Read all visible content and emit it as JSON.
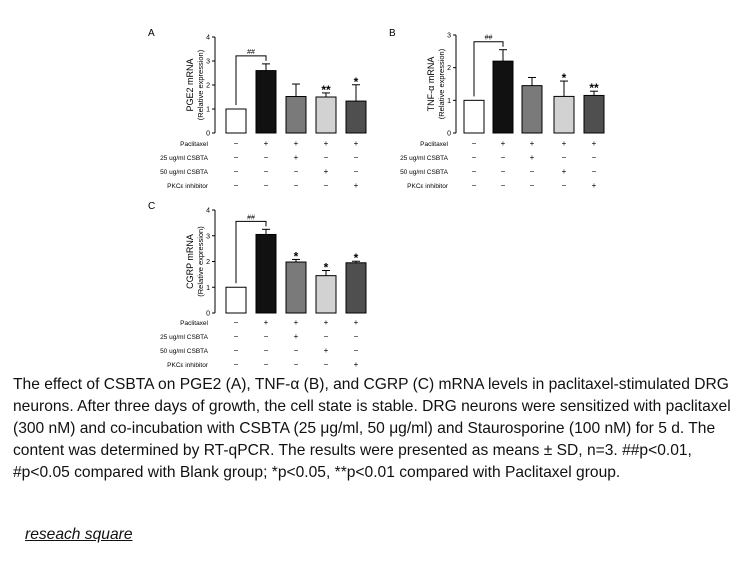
{
  "chart_data": [
    {
      "panel": "A",
      "type": "bar",
      "ylabel": "PGE2  mRNA",
      "ylabel2": "(Relative expression)",
      "ylim": [
        0,
        4
      ],
      "yticks": [
        "0",
        "1",
        "2",
        "3",
        "4"
      ],
      "values": [
        1.0,
        2.6,
        1.52,
        1.5,
        1.33
      ],
      "errors": [
        0,
        0.28,
        0.52,
        0.17,
        0.68
      ],
      "colors": [
        "#ffffff",
        "#111111",
        "#7a7a7a",
        "#d2d2d2",
        "#4f4f4f"
      ],
      "annotations": [
        "",
        "",
        "",
        "**",
        "*"
      ],
      "bracket_label": "##",
      "row_labels": [
        "Paclitaxel",
        "25 ug/ml CSBTA",
        "50 ug/ml CSBTA",
        "PKCε inhibitor"
      ],
      "treatment_table": [
        [
          "−",
          "+",
          "+",
          "+",
          "+"
        ],
        [
          "−",
          "−",
          "+",
          "−",
          "−"
        ],
        [
          "−",
          "−",
          "−",
          "+",
          "−"
        ],
        [
          "−",
          "−",
          "−",
          "−",
          "+"
        ]
      ]
    },
    {
      "panel": "B",
      "type": "bar",
      "ylabel": "TNF-α  mRNA",
      "ylabel2": "(Relative expression)",
      "ylim": [
        0,
        3
      ],
      "yticks": [
        "0",
        "1",
        "2",
        "3"
      ],
      "values": [
        1.0,
        2.2,
        1.45,
        1.12,
        1.15
      ],
      "errors": [
        0,
        0.35,
        0.25,
        0.47,
        0.13
      ],
      "colors": [
        "#ffffff",
        "#111111",
        "#7a7a7a",
        "#d2d2d2",
        "#4f4f4f"
      ],
      "annotations": [
        "",
        "",
        "",
        "*",
        "**"
      ],
      "bracket_label": "##",
      "row_labels": [
        "Paclitaxel",
        "25 ug/ml CSBTA",
        "50 ug/ml CSBTA",
        "PKCε inhibitor"
      ],
      "treatment_table": [
        [
          "−",
          "+",
          "+",
          "+",
          "+"
        ],
        [
          "−",
          "−",
          "+",
          "−",
          "−"
        ],
        [
          "−",
          "−",
          "−",
          "+",
          "−"
        ],
        [
          "−",
          "−",
          "−",
          "−",
          "+"
        ]
      ]
    },
    {
      "panel": "C",
      "type": "bar",
      "ylabel": "CGRP  mRNA",
      "ylabel2": "(Relative expression)",
      "ylim": [
        0,
        4
      ],
      "yticks": [
        "0",
        "1",
        "2",
        "3",
        "4"
      ],
      "values": [
        1.0,
        3.05,
        1.98,
        1.45,
        1.95
      ],
      "errors": [
        0,
        0.2,
        0.1,
        0.2,
        0.06
      ],
      "colors": [
        "#ffffff",
        "#111111",
        "#7a7a7a",
        "#d2d2d2",
        "#4f4f4f"
      ],
      "annotations": [
        "",
        "",
        "*",
        "*",
        "*"
      ],
      "bracket_label": "##",
      "row_labels": [
        "Paclitaxel",
        "25 ug/ml CSBTA",
        "50 ug/ml CSBTA",
        "PKCε inhibitor"
      ],
      "treatment_table": [
        [
          "−",
          "+",
          "+",
          "+",
          "+"
        ],
        [
          "−",
          "−",
          "+",
          "−",
          "−"
        ],
        [
          "−",
          "−",
          "−",
          "+",
          "−"
        ],
        [
          "−",
          "−",
          "−",
          "−",
          "+"
        ]
      ]
    }
  ],
  "caption": "The effect of CSBTA on PGE2 (A), TNF-α (B), and CGRP (C) mRNA levels in paclitaxel-stimulated DRG neurons. After three days of growth, the cell state is stable. DRG neurons were sensitized with paclitaxel (300 nM) and co-incubation with CSBTA (25 μg/ml, 50 μg/ml) and Staurosporine (100 nM) for 5 d. The content was determined by RT-qPCR. The results were presented as means ± SD, n=3. ##p<0.01, #p<0.05 compared with Blank group; *p<0.05, **p<0.01 compared with Paclitaxel group.",
  "source_link": "reseach square"
}
